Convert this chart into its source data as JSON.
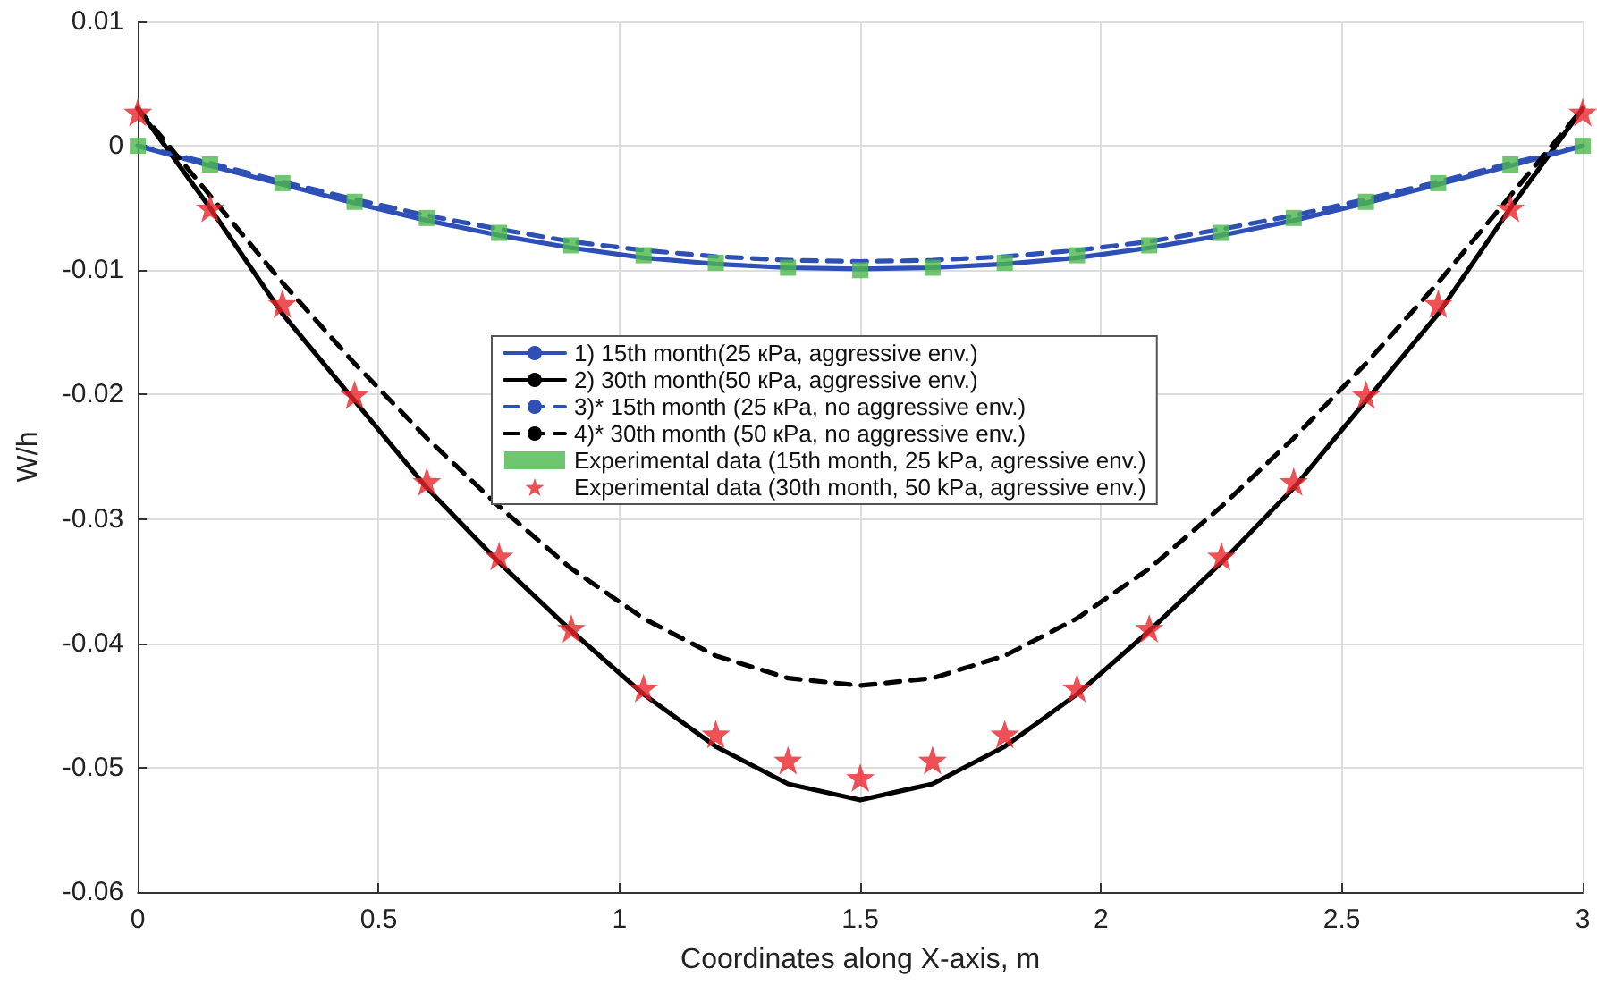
{
  "chart_data": {
    "type": "line",
    "xlabel": "Coordinates along X-axis, m",
    "ylabel": "W/h",
    "xlim": [
      0,
      3
    ],
    "xticks": [
      0,
      0.5,
      1,
      1.5,
      2,
      2.5,
      3
    ],
    "ylim": [
      -0.06,
      0.01
    ],
    "yticks": [
      -0.06,
      -0.05,
      -0.04,
      -0.03,
      -0.02,
      -0.01,
      0,
      0.01
    ],
    "grid": true,
    "legend": "center",
    "marker": "none",
    "x": [
      0,
      0.15,
      0.3,
      0.45,
      0.6,
      0.75,
      0.9,
      1.05,
      1.2,
      1.35,
      1.5,
      1.65,
      1.8,
      1.95,
      2.1,
      2.25,
      2.4,
      2.55,
      2.7,
      2.85,
      3
    ],
    "series": [
      {
        "name": "1) 15th month(25 кPa, aggressive env.)",
        "color": "#2e4fb5",
        "line_style": "solid",
        "values": [
          0,
          -0.0016,
          -0.0031,
          -0.0046,
          -0.006,
          -0.0072,
          -0.0082,
          -0.009,
          -0.0095,
          -0.0098,
          -0.0099,
          -0.0098,
          -0.0095,
          -0.009,
          -0.0082,
          -0.0072,
          -0.006,
          -0.0046,
          -0.0031,
          -0.0016,
          0
        ]
      },
      {
        "name": "2) 30th month(50 кPa, aggressive env.)",
        "color": "#000000",
        "line_style": "solid",
        "values": [
          0.003,
          -0.005,
          -0.0135,
          -0.0205,
          -0.0275,
          -0.0335,
          -0.039,
          -0.0441,
          -0.0483,
          -0.0513,
          -0.0526,
          -0.0513,
          -0.0483,
          -0.0441,
          -0.039,
          -0.0335,
          -0.0275,
          -0.0205,
          -0.0135,
          -0.005,
          0.003
        ]
      },
      {
        "name": "3)* 15th month (25 кPa, no aggressive env.)",
        "color": "#2e4fb5",
        "line_style": "dashed",
        "values": [
          0,
          -0.0014,
          -0.0029,
          -0.0043,
          -0.0056,
          -0.0067,
          -0.0077,
          -0.0084,
          -0.0089,
          -0.0092,
          -0.0093,
          -0.0092,
          -0.0089,
          -0.0084,
          -0.0077,
          -0.0067,
          -0.0056,
          -0.0043,
          -0.0029,
          -0.0014,
          0
        ]
      },
      {
        "name": "4)* 30th month (50 кPa, no aggressive env.)",
        "color": "#000000",
        "line_style": "dashed",
        "values": [
          0.003,
          -0.004,
          -0.011,
          -0.0175,
          -0.0235,
          -0.029,
          -0.034,
          -0.038,
          -0.041,
          -0.0428,
          -0.0434,
          -0.0428,
          -0.041,
          -0.038,
          -0.034,
          -0.029,
          -0.0235,
          -0.0175,
          -0.011,
          -0.004,
          0.003
        ]
      },
      {
        "name": "Experimental data (15th month, 25 kPa, agressive env.)",
        "type": "scatter",
        "marker": "square",
        "color": "#4cb84c",
        "values": [
          0,
          -0.0015,
          -0.003,
          -0.0045,
          -0.0058,
          -0.007,
          -0.008,
          -0.0088,
          -0.0094,
          -0.0098,
          -0.01,
          -0.0098,
          -0.0094,
          -0.0088,
          -0.008,
          -0.007,
          -0.0058,
          -0.0045,
          -0.003,
          -0.0015,
          0
        ]
      },
      {
        "name": "Experimental data (30th month, 50 kPa, agressive env.)",
        "type": "scatter",
        "marker": "star",
        "color": "#e8262b",
        "values": [
          0.0027,
          -0.005,
          -0.0127,
          -0.02,
          -0.027,
          -0.033,
          -0.0388,
          -0.0436,
          -0.0473,
          -0.0494,
          -0.0508,
          -0.0494,
          -0.0473,
          -0.0436,
          -0.0388,
          -0.033,
          -0.027,
          -0.02,
          -0.0127,
          -0.005,
          0.0027
        ]
      }
    ]
  }
}
